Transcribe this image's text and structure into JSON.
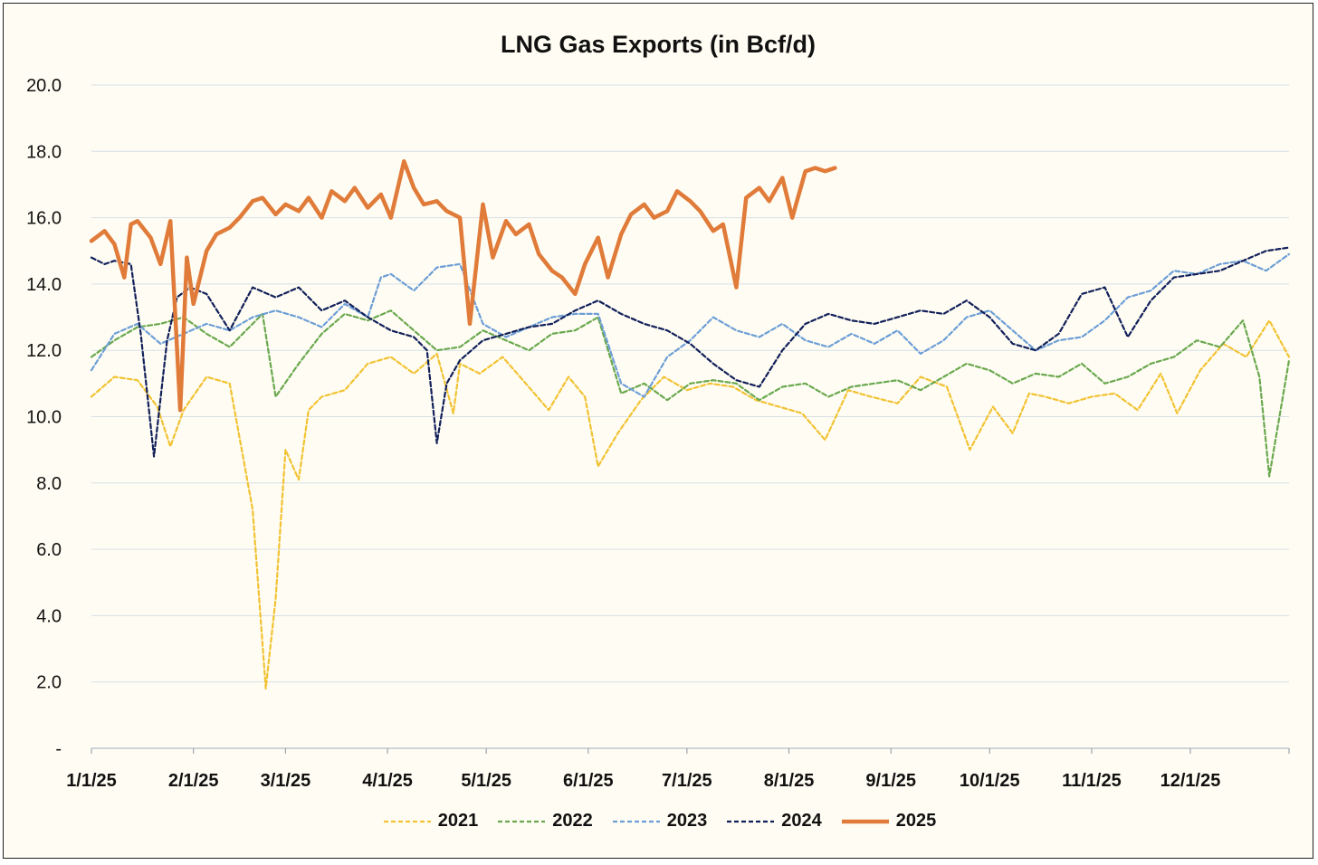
{
  "chart_data": {
    "type": "line",
    "title": "LNG Gas Exports (in Bcf/d)",
    "xlabel": "",
    "ylabel": "",
    "ylim": [
      0,
      20
    ],
    "y_ticks": [
      "-",
      "2.0",
      "4.0",
      "6.0",
      "8.0",
      "10.0",
      "12.0",
      "14.0",
      "16.0",
      "18.0",
      "20.0"
    ],
    "x_ticks": [
      "1/1/25",
      "2/1/25",
      "3/1/25",
      "4/1/25",
      "5/1/25",
      "6/1/25",
      "7/1/25",
      "8/1/25",
      "9/1/25",
      "10/1/25",
      "11/1/25",
      "12/1/25"
    ],
    "x_range": [
      "1/1/25",
      "12/31/25"
    ],
    "grid": "horizontal",
    "legend_position": "bottom",
    "series": [
      {
        "name": "2021",
        "color": "#f2c233",
        "style": "dashed",
        "x_days": [
          0,
          7,
          14,
          20,
          24,
          28,
          35,
          42,
          49,
          53,
          56,
          59,
          63,
          66,
          70,
          77,
          84,
          91,
          98,
          105,
          110,
          112,
          118,
          125,
          132,
          139,
          145,
          150,
          154,
          160,
          167,
          174,
          181,
          188,
          195,
          202,
          209,
          216,
          223,
          230,
          237,
          245,
          252,
          260,
          267,
          274,
          280,
          285,
          290,
          297,
          304,
          311,
          318,
          325,
          330,
          337,
          344,
          351,
          358,
          364
        ],
        "values": [
          10.6,
          11.2,
          11.1,
          10.3,
          9.1,
          10.2,
          11.2,
          11.0,
          7.2,
          1.8,
          4.5,
          9.0,
          8.1,
          10.2,
          10.6,
          10.8,
          11.6,
          11.8,
          11.3,
          11.9,
          10.1,
          11.6,
          11.3,
          11.8,
          11.0,
          10.2,
          11.2,
          10.6,
          8.5,
          9.5,
          10.5,
          11.2,
          10.8,
          11.0,
          10.9,
          10.5,
          10.3,
          10.1,
          9.3,
          10.8,
          10.6,
          10.4,
          11.2,
          10.9,
          9.0,
          10.3,
          9.5,
          10.7,
          10.6,
          10.4,
          10.6,
          10.7,
          10.2,
          11.3,
          10.1,
          11.4,
          12.2,
          11.8,
          12.9,
          11.8
        ]
      },
      {
        "name": "2022",
        "color": "#6aa84f",
        "style": "dashed",
        "x_days": [
          0,
          7,
          14,
          21,
          28,
          35,
          42,
          49,
          52,
          56,
          63,
          70,
          77,
          84,
          91,
          98,
          105,
          112,
          119,
          126,
          133,
          140,
          147,
          154,
          161,
          168,
          175,
          182,
          189,
          196,
          203,
          210,
          217,
          224,
          231,
          238,
          245,
          252,
          259,
          266,
          273,
          280,
          287,
          294,
          301,
          308,
          315,
          322,
          329,
          336,
          343,
          350,
          355,
          358,
          364
        ],
        "values": [
          11.8,
          12.3,
          12.7,
          12.8,
          13.0,
          12.5,
          12.1,
          12.8,
          13.1,
          10.6,
          11.6,
          12.5,
          13.1,
          12.9,
          13.2,
          12.6,
          12.0,
          12.1,
          12.6,
          12.3,
          12.0,
          12.5,
          12.6,
          13.0,
          10.7,
          11.0,
          10.5,
          11.0,
          11.1,
          11.0,
          10.5,
          10.9,
          11.0,
          10.6,
          10.9,
          11.0,
          11.1,
          10.8,
          11.2,
          11.6,
          11.4,
          11.0,
          11.3,
          11.2,
          11.6,
          11.0,
          11.2,
          11.6,
          11.8,
          12.3,
          12.1,
          12.9,
          11.2,
          8.2,
          11.7
        ]
      },
      {
        "name": "2023",
        "color": "#6d9ed6",
        "style": "dashed",
        "x_days": [
          0,
          7,
          14,
          21,
          28,
          35,
          42,
          49,
          56,
          63,
          70,
          77,
          84,
          88,
          91,
          98,
          105,
          112,
          119,
          126,
          133,
          140,
          147,
          154,
          161,
          168,
          175,
          182,
          189,
          196,
          203,
          210,
          217,
          224,
          231,
          238,
          245,
          252,
          259,
          266,
          273,
          280,
          287,
          294,
          301,
          308,
          315,
          322,
          329,
          336,
          343,
          350,
          357,
          364
        ],
        "values": [
          11.4,
          12.5,
          12.8,
          12.2,
          12.5,
          12.8,
          12.6,
          13.0,
          13.2,
          13.0,
          12.7,
          13.4,
          13.0,
          14.2,
          14.3,
          13.8,
          14.5,
          14.6,
          12.8,
          12.4,
          12.7,
          13.0,
          13.1,
          13.1,
          11.0,
          10.6,
          11.8,
          12.3,
          13.0,
          12.6,
          12.4,
          12.8,
          12.3,
          12.1,
          12.5,
          12.2,
          12.6,
          11.9,
          12.3,
          13.0,
          13.2,
          12.6,
          12.0,
          12.3,
          12.4,
          12.9,
          13.6,
          13.8,
          14.4,
          14.3,
          14.6,
          14.7,
          14.4,
          14.9
        ]
      },
      {
        "name": "2024",
        "color": "#12205a",
        "style": "dashed",
        "x_days": [
          0,
          4,
          7,
          12,
          15,
          19,
          23,
          26,
          30,
          35,
          42,
          49,
          56,
          63,
          70,
          77,
          84,
          91,
          98,
          102,
          105,
          108,
          112,
          119,
          126,
          133,
          140,
          147,
          154,
          161,
          168,
          175,
          182,
          189,
          196,
          203,
          210,
          217,
          224,
          231,
          238,
          245,
          252,
          259,
          266,
          273,
          280,
          287,
          294,
          301,
          308,
          315,
          322,
          329,
          336,
          343,
          350,
          357,
          364
        ],
        "values": [
          14.8,
          14.6,
          14.7,
          14.6,
          12.5,
          8.8,
          12.3,
          13.6,
          13.9,
          13.7,
          12.6,
          13.9,
          13.6,
          13.9,
          13.2,
          13.5,
          13.0,
          12.6,
          12.4,
          12.0,
          9.2,
          11.0,
          11.7,
          12.3,
          12.5,
          12.7,
          12.8,
          13.2,
          13.5,
          13.1,
          12.8,
          12.6,
          12.2,
          11.6,
          11.1,
          10.9,
          12.0,
          12.8,
          13.1,
          12.9,
          12.8,
          13.0,
          13.2,
          13.1,
          13.5,
          13.0,
          12.2,
          12.0,
          12.5,
          13.7,
          13.9,
          12.4,
          13.5,
          14.2,
          14.3,
          14.4,
          14.7,
          15.0,
          15.1
        ]
      },
      {
        "name": "2025",
        "color": "#e07b39",
        "style": "solid",
        "x_days": [
          0,
          4,
          7,
          10,
          12,
          14,
          18,
          21,
          24,
          27,
          29,
          31,
          35,
          38,
          42,
          45,
          49,
          52,
          56,
          59,
          63,
          66,
          70,
          73,
          77,
          80,
          84,
          88,
          91,
          95,
          98,
          101,
          105,
          108,
          112,
          115,
          119,
          122,
          126,
          129,
          133,
          136,
          140,
          143,
          147,
          150,
          154,
          157,
          161,
          164,
          168,
          171,
          175,
          178,
          182,
          185,
          189,
          192,
          196,
          199,
          203,
          206,
          210,
          213,
          217,
          220,
          223,
          226
        ],
        "values": [
          15.3,
          15.6,
          15.2,
          14.2,
          15.8,
          15.9,
          15.4,
          14.6,
          15.9,
          10.2,
          14.8,
          13.4,
          15.0,
          15.5,
          15.7,
          16.0,
          16.5,
          16.6,
          16.1,
          16.4,
          16.2,
          16.6,
          16.0,
          16.8,
          16.5,
          16.9,
          16.3,
          16.7,
          16.0,
          17.7,
          16.9,
          16.4,
          16.5,
          16.2,
          16.0,
          12.8,
          16.4,
          14.8,
          15.9,
          15.5,
          15.8,
          14.9,
          14.4,
          14.2,
          13.7,
          14.6,
          15.4,
          14.2,
          15.5,
          16.1,
          16.4,
          16.0,
          16.2,
          16.8,
          16.5,
          16.2,
          15.6,
          15.8,
          13.9,
          16.6,
          16.9,
          16.5,
          17.2,
          16.0,
          17.4,
          17.5,
          17.4,
          17.5
        ]
      }
    ]
  }
}
